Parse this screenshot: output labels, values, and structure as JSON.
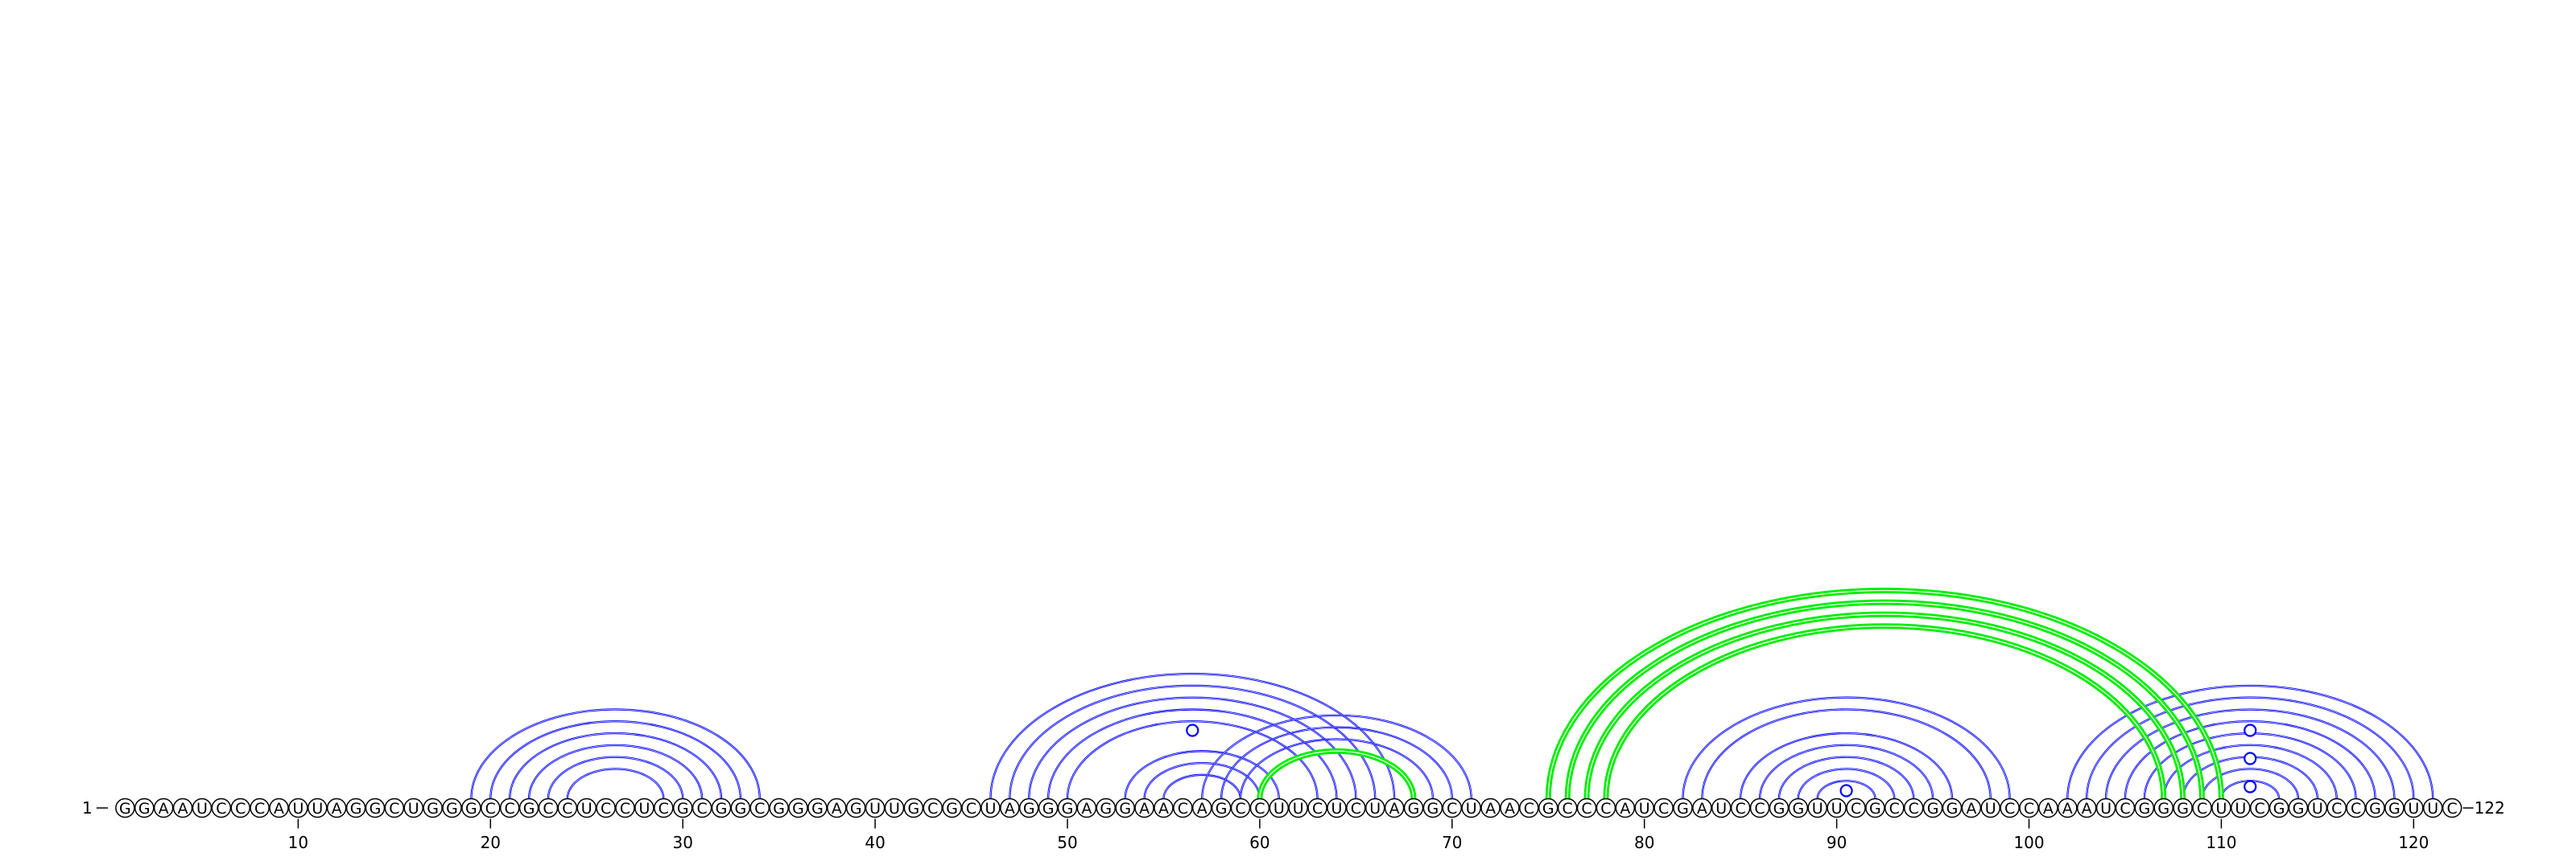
{
  "sequence": "GGAAUCCCAUUAGGCUGGGCCGCCUCCUCGCGGCGGGAGUUGCGCUAGGGAGGAACAGCCUUCUCUAGGCUAACGCCCAUCGAUCCGGUUCGCCGGAUCCAAAUCGGGCUUCGGUCCGGUUC",
  "start_label": "1",
  "end_label": "122",
  "tick_labels": [
    "10",
    "20",
    "30",
    "40",
    "50",
    "60",
    "70",
    "80",
    "90",
    "100",
    "110",
    "120"
  ],
  "colors": {
    "primary_arcs": "#0000ff",
    "alternate_arcs": "#00ee00",
    "background": "#ffffff"
  },
  "arc_sets": [
    {
      "color": "primary",
      "pairs": [
        [
          19,
          34
        ],
        [
          20,
          33
        ],
        [
          21,
          32
        ],
        [
          22,
          31
        ],
        [
          23,
          30
        ],
        [
          24,
          29
        ]
      ]
    },
    {
      "color": "primary",
      "pairs": [
        [
          46,
          67
        ],
        [
          47,
          66
        ],
        [
          48,
          65
        ],
        [
          49,
          64
        ],
        [
          50,
          63
        ]
      ]
    },
    {
      "color": "primary",
      "pairs": [
        [
          53,
          61
        ],
        [
          54,
          60
        ],
        [
          55,
          59
        ]
      ]
    },
    {
      "color": "primary",
      "pairs": [
        [
          57,
          71
        ],
        [
          58,
          70
        ],
        [
          59,
          69
        ],
        [
          60,
          68
        ]
      ]
    },
    {
      "color": "primary",
      "pairs": [
        [
          82,
          99
        ],
        [
          83,
          98
        ],
        [
          85,
          96
        ],
        [
          86,
          95
        ],
        [
          87,
          94
        ],
        [
          88,
          93
        ],
        [
          89,
          92
        ]
      ]
    },
    {
      "color": "primary",
      "pairs": [
        [
          102,
          121
        ],
        [
          103,
          120
        ],
        [
          104,
          119
        ],
        [
          105,
          118
        ],
        [
          106,
          117
        ],
        [
          107,
          116
        ],
        [
          108,
          115
        ],
        [
          109,
          114
        ],
        [
          110,
          113
        ]
      ]
    },
    {
      "color": "alternate",
      "pairs": [
        [
          60,
          68
        ],
        [
          75,
          110
        ],
        [
          76,
          109
        ],
        [
          77,
          108
        ],
        [
          78,
          107
        ]
      ]
    }
  ],
  "loop_markers": [
    56.5,
    90.5,
    111.5,
    111.5,
    111.5
  ],
  "loop_marker_levels": [
    0.17,
    0.02,
    0.17,
    0.1,
    0.03
  ]
}
